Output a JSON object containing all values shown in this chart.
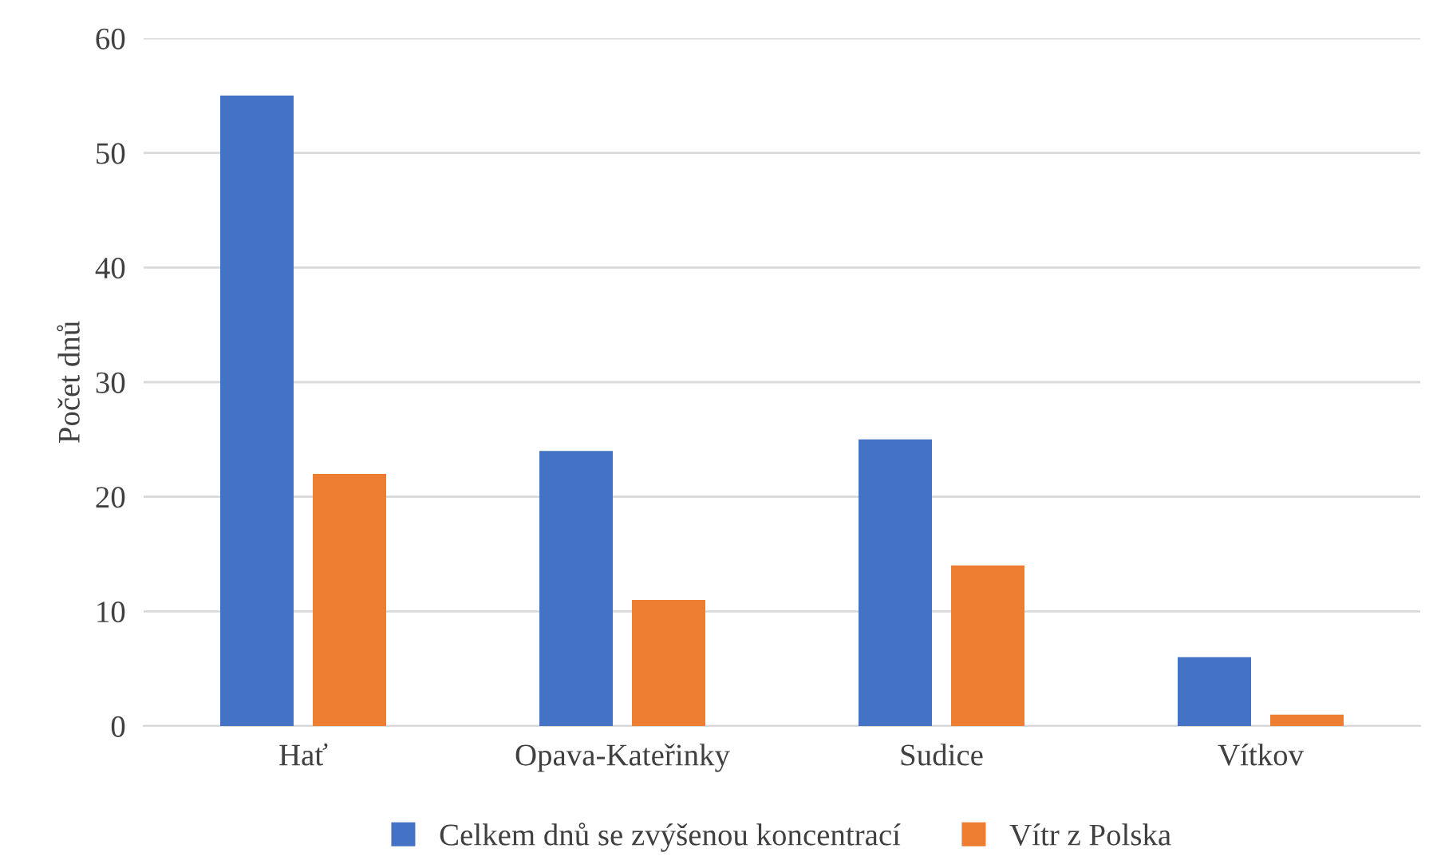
{
  "chart_data": {
    "type": "bar",
    "ylabel": "Počet dnů",
    "categories": [
      "Hať",
      "Opava-Kateřinky",
      "Sudice",
      "Vítkov"
    ],
    "series": [
      {
        "name": "Celkem dnů se zvýšenou koncentrací",
        "color": "#4472c4",
        "values": [
          55,
          24,
          25,
          6
        ]
      },
      {
        "name": "Vítr z Polska",
        "color": "#ed7d31",
        "values": [
          22,
          11,
          14,
          1
        ]
      }
    ],
    "ylim": [
      0,
      60
    ],
    "yticks": [
      0,
      10,
      20,
      30,
      40,
      50,
      60
    ],
    "grid": "y",
    "legend": "bottom"
  }
}
